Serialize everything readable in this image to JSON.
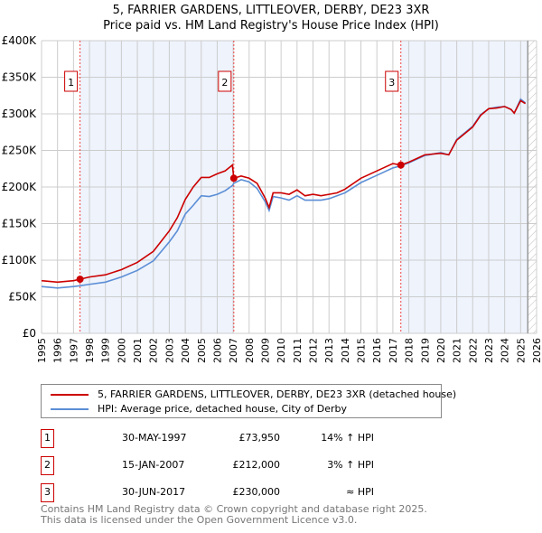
{
  "title_line1": "5, FARRIER GARDENS, LITTLEOVER, DERBY, DE23 3XR",
  "title_line2": "Price paid vs. HM Land Registry's House Price Index (HPI)",
  "chart_data": {
    "type": "line",
    "ylim": [
      0,
      400000
    ],
    "xlim": [
      1995,
      2026
    ],
    "yticks": [
      0,
      50000,
      100000,
      150000,
      200000,
      250000,
      300000,
      350000,
      400000
    ],
    "ytick_labels": [
      "£0",
      "£50K",
      "£100K",
      "£150K",
      "£200K",
      "£250K",
      "£300K",
      "£350K",
      "£400K"
    ],
    "xticks": [
      1995,
      1996,
      1997,
      1998,
      1999,
      2000,
      2001,
      2002,
      2003,
      2004,
      2005,
      2006,
      2007,
      2008,
      2009,
      2010,
      2011,
      2012,
      2013,
      2014,
      2015,
      2016,
      2017,
      2018,
      2019,
      2020,
      2021,
      2022,
      2023,
      2024,
      2025,
      2026
    ],
    "grid": true,
    "series": [
      {
        "name": "5, FARRIER GARDENS, LITTLEOVER, DERBY, DE23 3XR (detached house)",
        "color": "#cc0000",
        "x": [
          1995,
          1996,
          1997,
          1997.4,
          1998,
          1999,
          2000,
          2001,
          2002,
          2003,
          2003.5,
          2004,
          2004.5,
          2005,
          2005.5,
          2006,
          2006.5,
          2006.95,
          2007.04,
          2007.5,
          2008,
          2008.5,
          2009,
          2009.25,
          2009.5,
          2010,
          2010.5,
          2011,
          2011.5,
          2012,
          2012.5,
          2013,
          2013.5,
          2014,
          2015,
          2016,
          2017,
          2017.5,
          2018,
          2019,
          2020,
          2020.5,
          2021,
          2022,
          2022.5,
          2023,
          2023.5,
          2024,
          2024.4,
          2024.6,
          2025,
          2025.3
        ],
        "values": [
          72000,
          70000,
          72000,
          73950,
          77000,
          80000,
          87000,
          97000,
          112000,
          140000,
          158000,
          183000,
          200000,
          213000,
          213000,
          218000,
          222000,
          230000,
          212000,
          215000,
          212000,
          205000,
          185000,
          172000,
          192000,
          192000,
          190000,
          196000,
          188000,
          190000,
          188000,
          190000,
          192000,
          197000,
          212000,
          222000,
          232000,
          230000,
          234000,
          244000,
          246000,
          244000,
          264000,
          282000,
          298000,
          307000,
          308000,
          310000,
          306000,
          301000,
          318000,
          314000
        ]
      },
      {
        "name": "HPI: Average price, detached house, City of Derby",
        "color": "#5b8ed6",
        "x": [
          1995,
          1996,
          1997,
          1997.4,
          1998,
          1999,
          2000,
          2001,
          2002,
          2003,
          2003.5,
          2004,
          2004.5,
          2005,
          2005.5,
          2006,
          2006.5,
          2006.95,
          2007.04,
          2007.5,
          2008,
          2008.5,
          2009,
          2009.25,
          2009.5,
          2010,
          2010.5,
          2011,
          2011.5,
          2012,
          2012.5,
          2013,
          2013.5,
          2014,
          2015,
          2016,
          2017,
          2017.5,
          2018,
          2019,
          2020,
          2020.5,
          2021,
          2022,
          2022.5,
          2023,
          2023.5,
          2024,
          2024.4,
          2024.6,
          2025,
          2025.3
        ],
        "values": [
          64000,
          62000,
          64000,
          65000,
          67000,
          70000,
          77000,
          86000,
          99000,
          125000,
          140000,
          163000,
          175000,
          188000,
          187000,
          190000,
          195000,
          202000,
          205000,
          210000,
          207000,
          198000,
          180000,
          168000,
          187000,
          185000,
          182000,
          188000,
          182000,
          182000,
          182000,
          184000,
          188000,
          192000,
          206000,
          216000,
          226000,
          229000,
          233000,
          243000,
          247000,
          244000,
          265000,
          283000,
          299000,
          307000,
          309000,
          310000,
          306000,
          301000,
          320000,
          315000
        ]
      }
    ],
    "sales": [
      {
        "label": "1",
        "x": 1997.41,
        "value": 73950
      },
      {
        "label": "2",
        "x": 2007.04,
        "value": 212000
      },
      {
        "label": "3",
        "x": 2017.5,
        "value": 230000
      }
    ],
    "shaded_ranges": [
      [
        1997.41,
        2007.04
      ],
      [
        2017.5,
        2025.45
      ]
    ],
    "hatch_from": 2025.45
  },
  "legend": [
    "5, FARRIER GARDENS, LITTLEOVER, DERBY, DE23 3XR (detached house)",
    "HPI: Average price, detached house, City of Derby"
  ],
  "transactions": [
    {
      "num": "1",
      "date": "30-MAY-1997",
      "price": "£73,950",
      "hpi": "14% ↑ HPI"
    },
    {
      "num": "2",
      "date": "15-JAN-2007",
      "price": "£212,000",
      "hpi": "3% ↑ HPI"
    },
    {
      "num": "3",
      "date": "30-JUN-2017",
      "price": "£230,000",
      "hpi": "≈ HPI"
    }
  ],
  "footer_line1": "Contains HM Land Registry data © Crown copyright and database right 2025.",
  "footer_line2": "This data is licensed under the Open Government Licence v3.0."
}
